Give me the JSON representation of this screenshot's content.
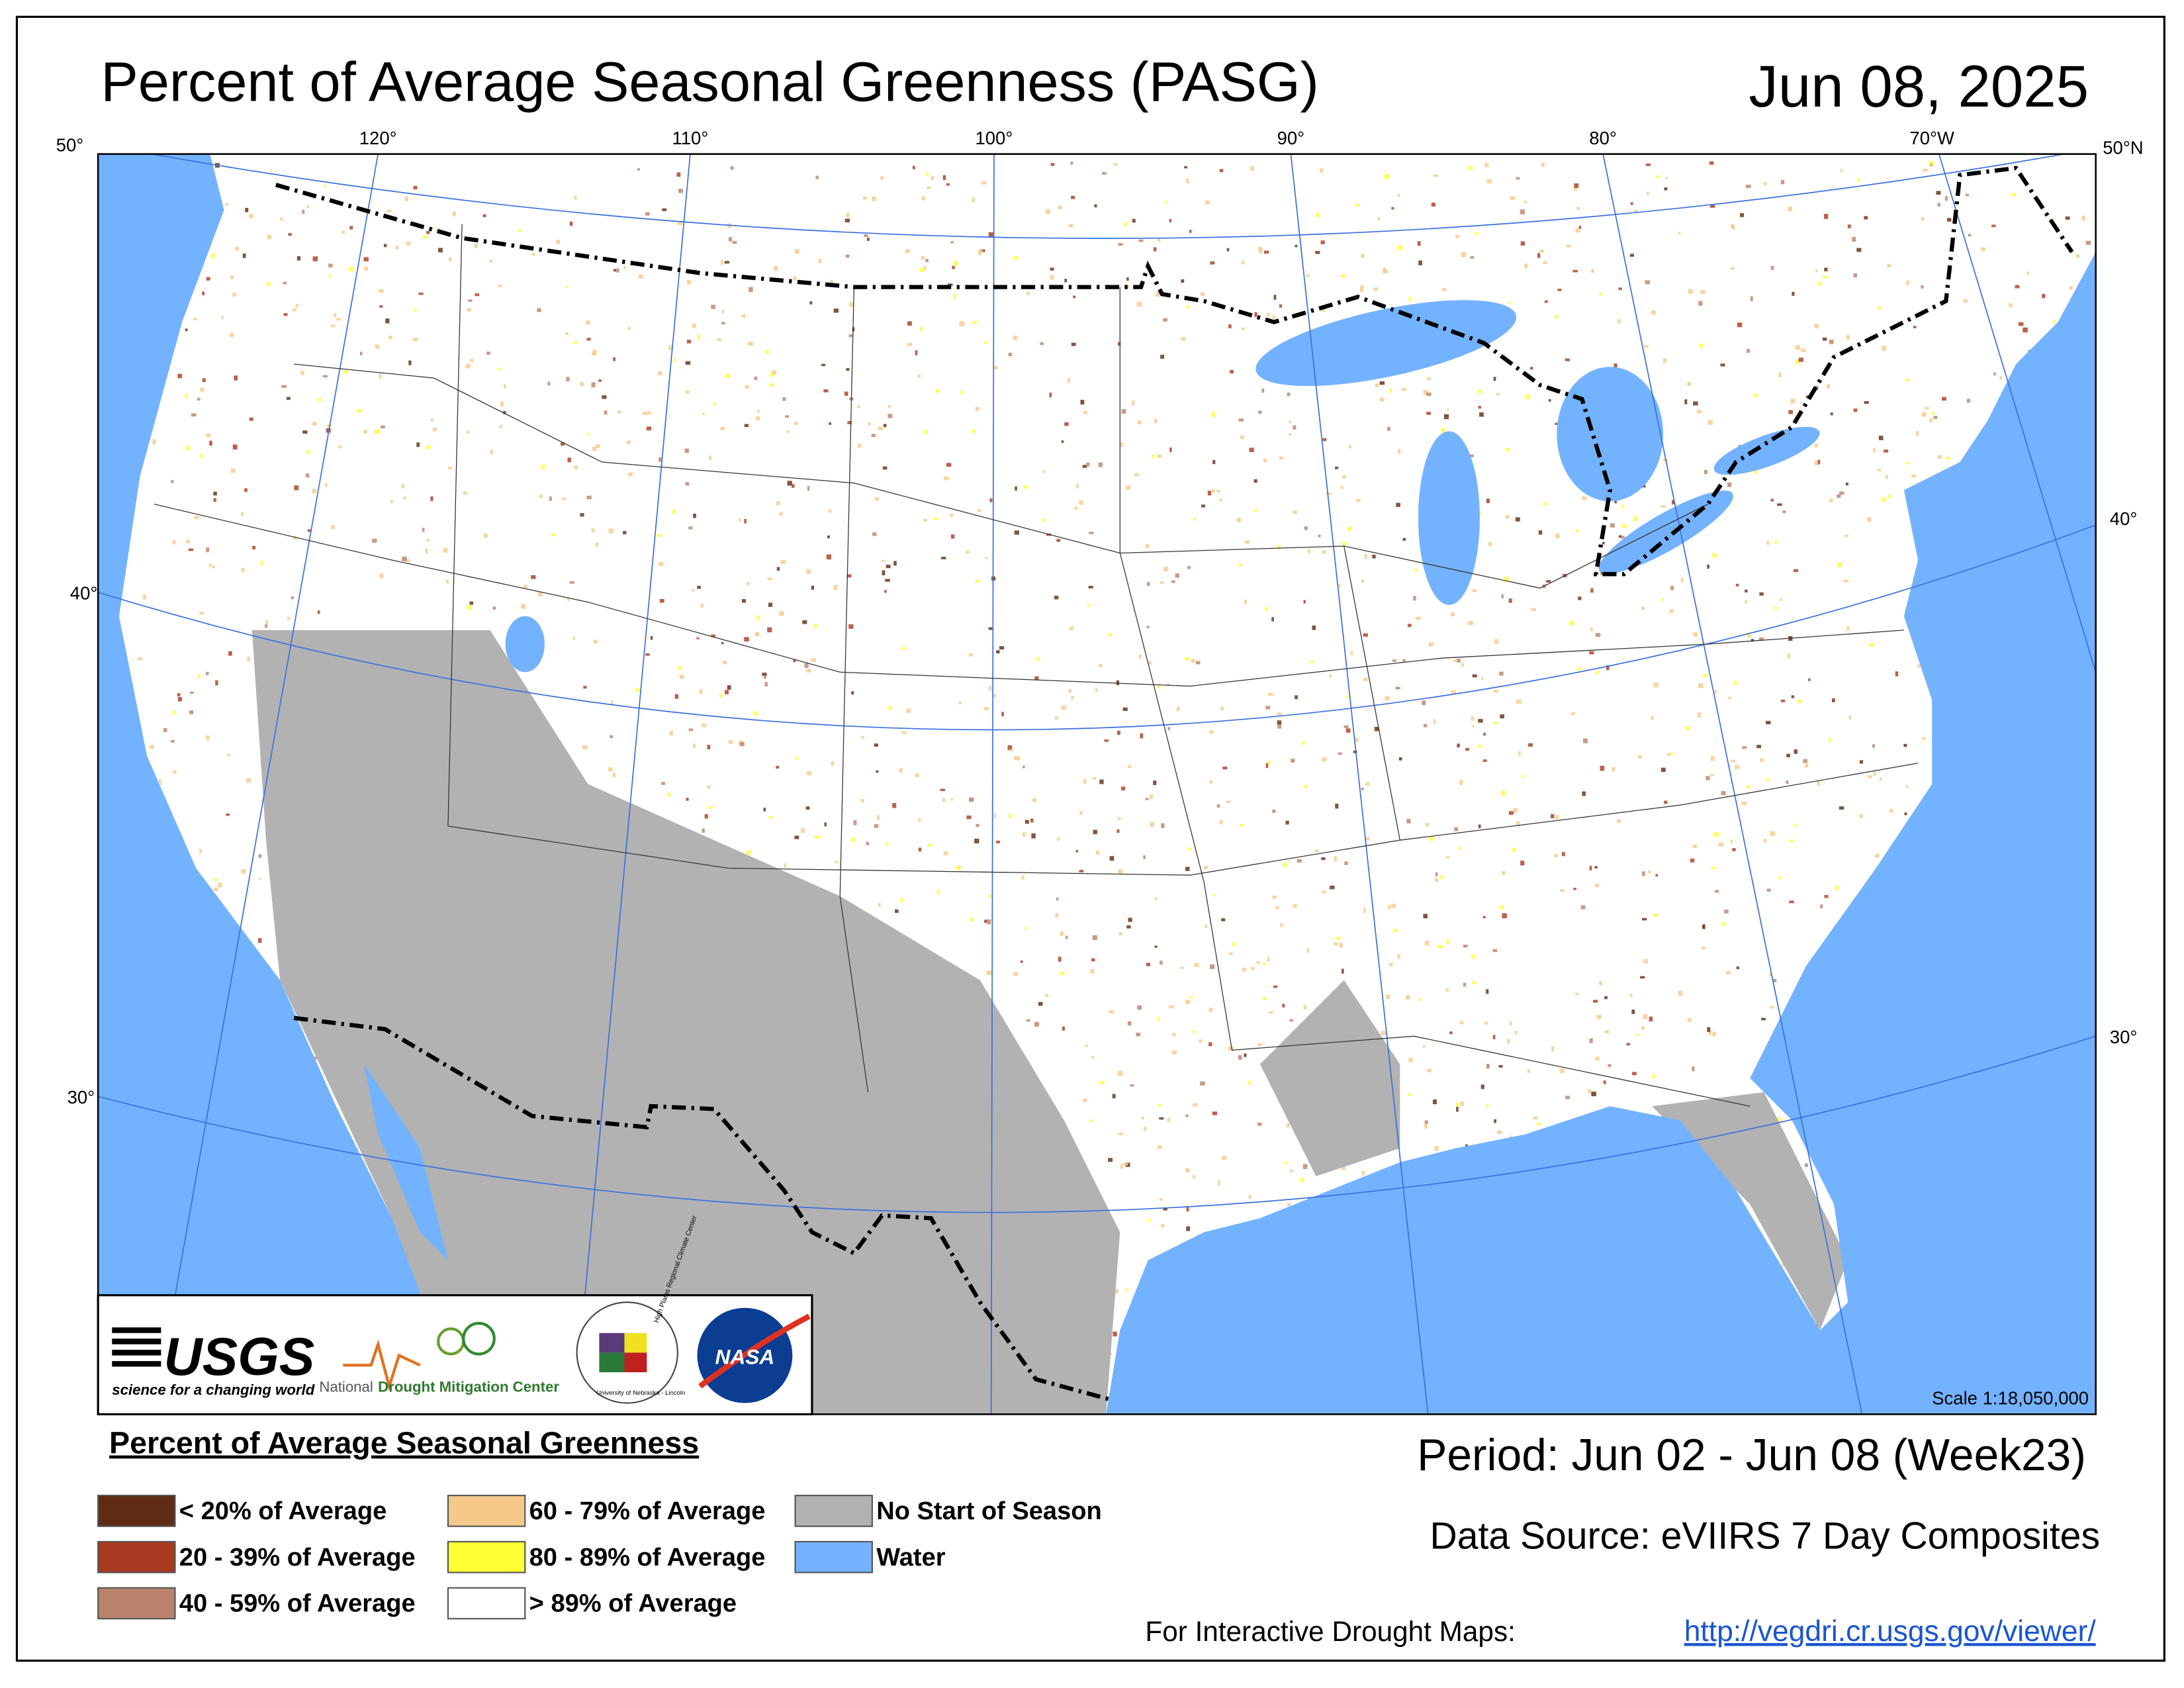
{
  "title": "Percent of Average Seasonal Greenness (PASG)",
  "date": "Jun 08, 2025",
  "graticule": {
    "top": [
      "120°",
      "110°",
      "100°",
      "90°",
      "80°",
      "70°W"
    ],
    "left": [
      "50°",
      "40°",
      "30°"
    ],
    "right": [
      "50°N",
      "40°",
      "30°"
    ]
  },
  "logos": {
    "usgs": "USGS",
    "usgs_tagline": "science for a changing world",
    "ndmc_prefix": "National",
    "ndmc": "Drought Mitigation Center",
    "hprcc": "High Plains Regional Climate Center",
    "hprcc_university": "University of Nebraska - Lincoln",
    "nasa": "NASA"
  },
  "scale": "Scale 1:18,050,000",
  "legend": {
    "title": "Percent of Average Seasonal Greenness",
    "items": [
      {
        "label": "< 20% of Average",
        "color": "#5e2c12"
      },
      {
        "label": "20 - 39% of Average",
        "color": "#a83a20"
      },
      {
        "label": "40 - 59% of Average",
        "color": "#b9826a"
      },
      {
        "label": "60 - 79% of Average",
        "color": "#f5c98a"
      },
      {
        "label": "80 - 89% of Average",
        "color": "#ffff33"
      },
      {
        "label": "> 89% of Average",
        "color": "#ffffff"
      },
      {
        "label": "No Start of Season",
        "color": "#b2b2b2"
      },
      {
        "label": "Water",
        "color": "#73b2ff"
      }
    ]
  },
  "period": "Period:  Jun 02 - Jun 08 (Week23)",
  "data_source": "Data Source:  eVIIRS 7 Day Composites",
  "interactive_label": "For Interactive Drought Maps:",
  "url": "http://vegdri.cr.usgs.gov/viewer/"
}
